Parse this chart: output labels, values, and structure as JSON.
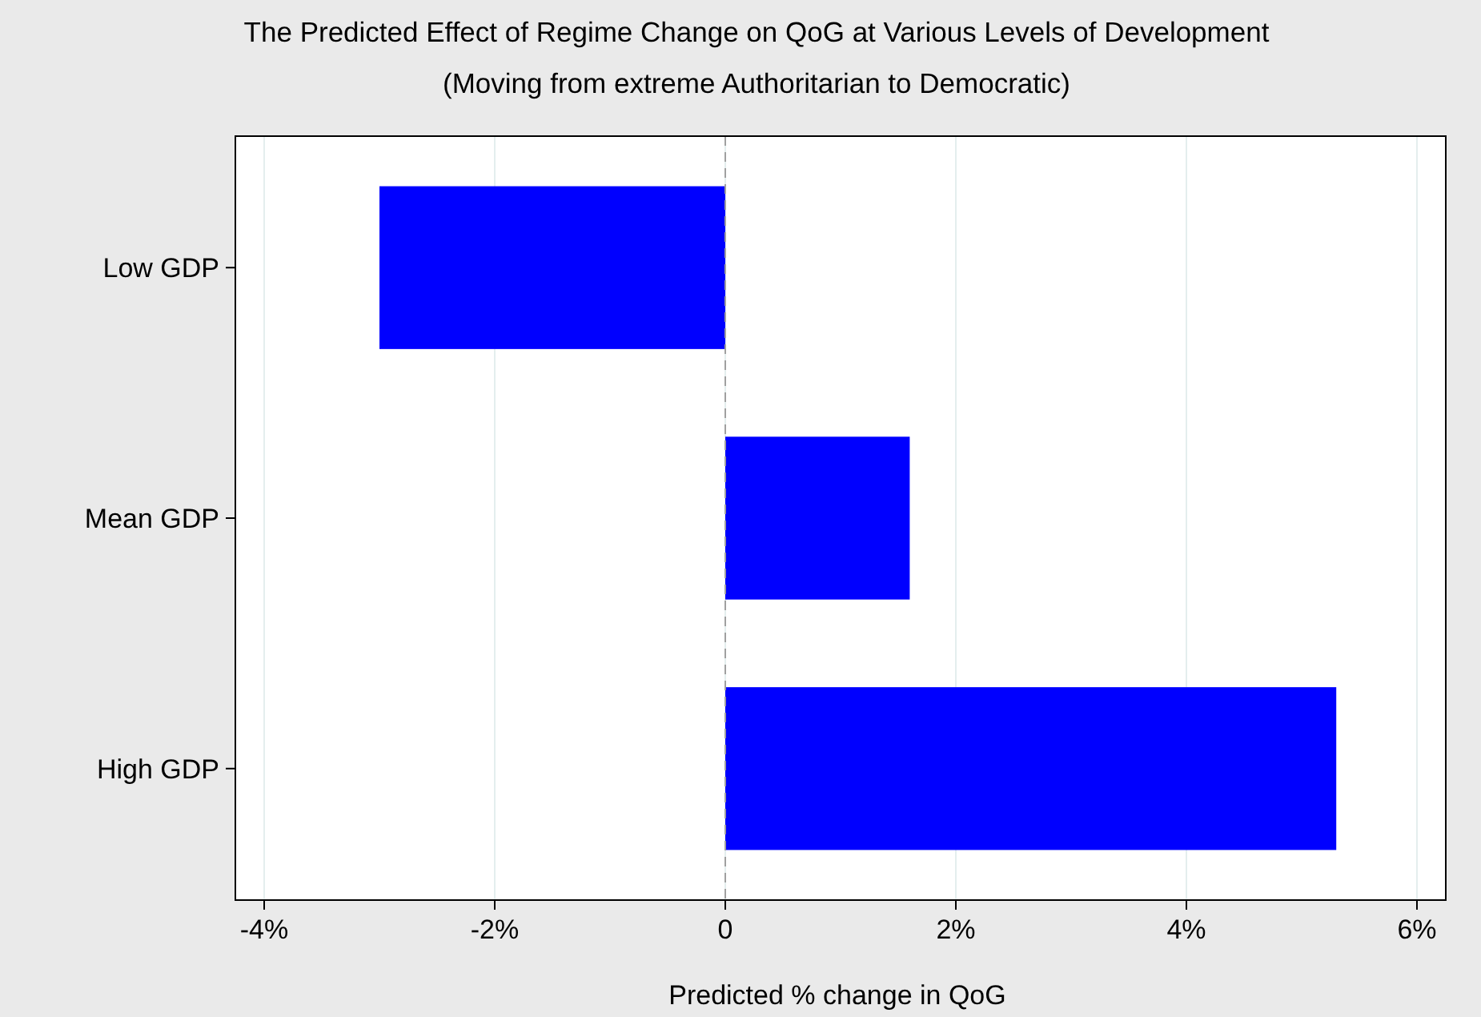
{
  "chart_data": {
    "type": "bar",
    "orientation": "horizontal",
    "title": "The Predicted Effect of Regime Change on QoG at Various Levels of Development",
    "subtitle": "(Moving from extreme Authoritarian to Democratic)",
    "xlabel": "Predicted % change in QoG",
    "categories": [
      "Low GDP",
      "Mean GDP",
      "High GDP"
    ],
    "values": [
      -3.0,
      1.6,
      5.3
    ],
    "color": "#0000ff",
    "xlim": [
      -4.25,
      6.25
    ],
    "xticks": [
      {
        "value": -4,
        "label": "-4%"
      },
      {
        "value": -2,
        "label": "-2%"
      },
      0,
      {
        "value": 2,
        "label": "2%"
      },
      {
        "value": 4,
        "label": "4%"
      },
      {
        "value": 6,
        "label": "6%"
      }
    ],
    "grid": "x",
    "ref_lines": [
      {
        "axis": "x",
        "value": 0,
        "color": "#a0a0a0",
        "line_style": "dashed"
      }
    ]
  }
}
